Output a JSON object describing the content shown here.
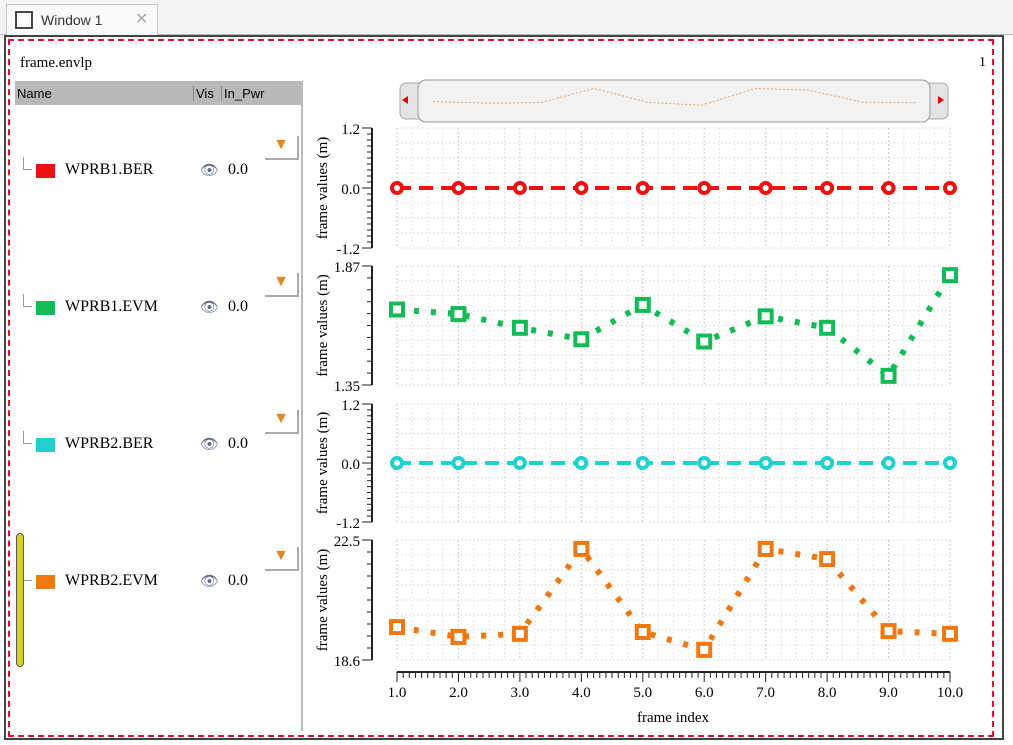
{
  "window": {
    "tab_label": "Window 1",
    "title": "frame.envlp",
    "page_number": "1"
  },
  "tree": {
    "columns": [
      "Name",
      "Vis",
      "In_Pwr"
    ],
    "items": [
      {
        "name": "WPRB1.BER",
        "color": "#ee1111",
        "value": "0.0"
      },
      {
        "name": "WPRB1.EVM",
        "color": "#11bb55",
        "value": "0.0"
      },
      {
        "name": "WPRB2.BER",
        "color": "#22d0d0",
        "value": "0.0"
      },
      {
        "name": "WPRB2.EVM",
        "color": "#f07810",
        "value": "0.0"
      }
    ]
  },
  "chart_data": {
    "type": "line",
    "x": [
      1,
      2,
      3,
      4,
      5,
      6,
      7,
      8,
      9,
      10
    ],
    "xticks": [
      "1.0",
      "2.0",
      "3.0",
      "4.0",
      "5.0",
      "6.0",
      "7.0",
      "8.0",
      "9.0",
      "10.0"
    ],
    "xlabel": "frame index",
    "xlim": [
      1,
      10
    ],
    "grid": true,
    "panels": [
      {
        "series_name": "WPRB1.BER",
        "ylabel": "frame values (m)",
        "ylim": [
          -1.2,
          1.2
        ],
        "yticks": [
          "1.2",
          "0.0",
          "-1.2"
        ],
        "color": "#ee1111",
        "line": "dashed",
        "marker": "circle",
        "values": [
          0,
          0,
          0,
          0,
          0,
          0,
          0,
          0,
          0,
          0
        ]
      },
      {
        "series_name": "WPRB1.EVM",
        "ylabel": "frame values (m)",
        "ylim": [
          1.35,
          1.87
        ],
        "yticks": [
          "1.87",
          "1.35"
        ],
        "color": "#11bb55",
        "line": "dotted",
        "marker": "square",
        "values": [
          1.68,
          1.66,
          1.6,
          1.55,
          1.7,
          1.54,
          1.65,
          1.6,
          1.39,
          1.83
        ]
      },
      {
        "series_name": "WPRB2.BER",
        "ylabel": "frame values (m)",
        "ylim": [
          -1.2,
          1.2
        ],
        "yticks": [
          "1.2",
          "0.0",
          "-1.2"
        ],
        "color": "#22d0d0",
        "line": "dashed",
        "marker": "circle",
        "values": [
          0,
          0,
          0,
          0,
          0,
          0,
          0,
          0,
          0,
          0
        ]
      },
      {
        "series_name": "WPRB2.EVM",
        "ylabel": "frame values (m)",
        "ylim": [
          18.6,
          22.5
        ],
        "yticks": [
          "22.5",
          "18.6"
        ],
        "color": "#f07810",
        "line": "dotted",
        "marker": "square",
        "values": [
          19.67,
          19.35,
          19.45,
          22.21,
          19.51,
          18.93,
          22.21,
          21.88,
          19.54,
          19.45
        ]
      }
    ]
  }
}
